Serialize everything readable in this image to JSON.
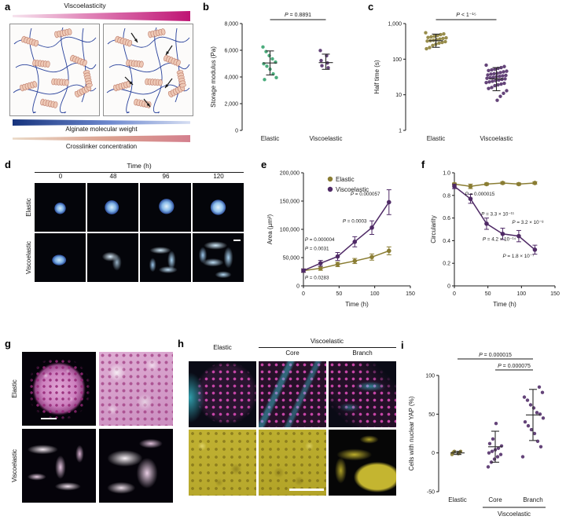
{
  "panels": {
    "a": {
      "label": "a",
      "viscoelasticity": "Viscoelasticity",
      "alginate": "Alginate molecular weight",
      "crosslinker": "Crosslinker concentration"
    },
    "b": {
      "label": "b"
    },
    "c": {
      "label": "c"
    },
    "d": {
      "label": "d",
      "time_header": "Time (h)",
      "timepoints": [
        "0",
        "48",
        "96",
        "120"
      ],
      "rows": [
        "Elastic",
        "Viscoelastic"
      ]
    },
    "e": {
      "label": "e"
    },
    "f": {
      "label": "f"
    },
    "g": {
      "label": "g",
      "rows": [
        "Elastic",
        "Viscoelastic"
      ]
    },
    "h": {
      "label": "h",
      "col1": "Elastic",
      "group": "Viscoelastic",
      "subcols": [
        "Core",
        "Branch"
      ]
    },
    "i": {
      "label": "i"
    }
  },
  "colors": {
    "elastic_olive": "#8a7d33",
    "elastic_green": "#33a06b",
    "viscoelastic_purple": "#4f2a66",
    "magenta_wedge": "#bf1474",
    "blue_wedge": "#16337d"
  },
  "chart_data": [
    {
      "id": "b",
      "type": "scatter_groups",
      "ylabel": "Storage modulus (Pa)",
      "ylim": [
        0,
        8000
      ],
      "yticks": [
        0,
        2000,
        4000,
        6000,
        8000
      ],
      "ytick_labels": [
        "0",
        "2,000",
        "4,000",
        "6,000",
        "8,000"
      ],
      "p_annotation": "P = 0.8891",
      "bracket": true,
      "groups": [
        {
          "label": "Elastic",
          "color": "#33a06b",
          "values": [
            6246,
            5899,
            5601,
            5356,
            5114,
            4989,
            4805,
            4582,
            4230,
            3952,
            3804
          ],
          "mean": 5050,
          "err_lo": 4150,
          "err_hi": 5950
        },
        {
          "label": "Viscoelastic",
          "color": "#4f2a66",
          "values": [
            5980,
            5590,
            5230,
            5050,
            4840,
            4690
          ],
          "mean": 5080,
          "err_lo": 4570,
          "err_hi": 5710
        }
      ]
    },
    {
      "id": "c",
      "type": "scatter_groups",
      "log": true,
      "ylabel": "Half time (s)",
      "ylim": [
        1,
        1000
      ],
      "yticks": [
        1,
        10,
        100,
        1000
      ],
      "ytick_labels": [
        "1",
        "10",
        "100",
        "1,000"
      ],
      "p_annotation": "P < 1⁻¹⁵",
      "bracket": true,
      "groups": [
        {
          "label": "Elastic",
          "color": "#8a7d33",
          "values": [
            551,
            512,
            489,
            462,
            441,
            423,
            408,
            396,
            381,
            368,
            352,
            340,
            331,
            322,
            310,
            295,
            282,
            265,
            243,
            212,
            196
          ],
          "mean": 330,
          "err_lo": 215,
          "err_hi": 505
        },
        {
          "label": "Viscoelastic",
          "color": "#4f2a66",
          "values": [
            68,
            62,
            58,
            55,
            52,
            50,
            48,
            46,
            44,
            42,
            40,
            39,
            38,
            36,
            35,
            34,
            33,
            32,
            31,
            30,
            29,
            28,
            27,
            26,
            25,
            24,
            23,
            22,
            21,
            20,
            19,
            18,
            16,
            15,
            13,
            11,
            9,
            7
          ],
          "mean": 28,
          "err_lo": 13,
          "err_hi": 58
        }
      ]
    },
    {
      "id": "e",
      "type": "line",
      "xlabel": "Time (h)",
      "ylabel": "Area (µm²)",
      "xlim": [
        0,
        150
      ],
      "xticks": [
        0,
        50,
        100,
        150
      ],
      "ylim": [
        0,
        200000
      ],
      "yticks": [
        0,
        50000,
        100000,
        150000,
        200000
      ],
      "ytick_labels": [
        "0",
        "50,000",
        "100,000",
        "150,000",
        "200,000"
      ],
      "legend": true,
      "series": [
        {
          "name": "Elastic",
          "color": "#8a7d33",
          "x": [
            0,
            24,
            48,
            72,
            96,
            120
          ],
          "y": [
            27000,
            31000,
            38000,
            44000,
            51000,
            62000
          ],
          "err": [
            3000,
            3500,
            4000,
            4500,
            5500,
            7000
          ]
        },
        {
          "name": "Viscoelastic",
          "color": "#4f2a66",
          "x": [
            0,
            24,
            48,
            72,
            96,
            120
          ],
          "y": [
            27000,
            40000,
            52000,
            78000,
            103000,
            148000
          ],
          "err": [
            3000,
            5000,
            7000,
            9000,
            12000,
            22000
          ]
        }
      ],
      "annotations": [
        {
          "text": "P = 0.0283",
          "x": 2,
          "y": 12000
        },
        {
          "text": "P = 0.0031",
          "x": 2,
          "y": 63000
        },
        {
          "text": "P = 0.000004",
          "x": 2,
          "y": 79000
        },
        {
          "text": "P = 0.0003",
          "x": 55,
          "y": 112000
        },
        {
          "text": "P = 0.000057",
          "x": 66,
          "y": 160000
        }
      ]
    },
    {
      "id": "f",
      "type": "line",
      "xlabel": "Time (h)",
      "ylabel": "Circularity",
      "xlim": [
        0,
        150
      ],
      "xticks": [
        0,
        50,
        100,
        150
      ],
      "ylim": [
        0,
        1.0
      ],
      "yticks": [
        0,
        0.2,
        0.4,
        0.6,
        0.8,
        1.0
      ],
      "ytick_labels": [
        "0",
        "0.2",
        "0.4",
        "0.6",
        "0.8",
        "1.0"
      ],
      "legend": false,
      "series": [
        {
          "name": "Elastic",
          "color": "#8a7d33",
          "x": [
            0,
            24,
            48,
            72,
            96,
            120
          ],
          "y": [
            0.9,
            0.88,
            0.9,
            0.91,
            0.9,
            0.91
          ],
          "err": [
            0.01,
            0.02,
            0.01,
            0.01,
            0.01,
            0.01
          ]
        },
        {
          "name": "Viscoelastic",
          "color": "#4f2a66",
          "x": [
            0,
            24,
            48,
            72,
            96,
            120
          ],
          "y": [
            0.88,
            0.77,
            0.55,
            0.46,
            0.44,
            0.32
          ],
          "err": [
            0.02,
            0.04,
            0.05,
            0.05,
            0.05,
            0.04
          ]
        }
      ],
      "annotations": [
        {
          "text": "P = 0.000015",
          "x": 16,
          "y": 0.8
        },
        {
          "text": "P = 3.3 × 10⁻¹¹",
          "x": 40,
          "y": 0.62
        },
        {
          "text": "P = 3.2 × 10⁻⁸",
          "x": 86,
          "y": 0.55
        },
        {
          "text": "P = 4.2 × 10⁻¹⁴",
          "x": 42,
          "y": 0.4
        },
        {
          "text": "P = 1.8 × 10⁻⁷",
          "x": 72,
          "y": 0.25
        }
      ]
    },
    {
      "id": "i",
      "type": "scatter_groups",
      "ylabel": "Cells with nuclear YAP (%)",
      "ylim": [
        -50,
        100
      ],
      "yticks": [
        -50,
        0,
        50,
        100
      ],
      "ytick_labels": [
        "-50",
        "0",
        "50",
        "100"
      ],
      "groups": [
        {
          "label": "Elastic",
          "color": "#8a7d33",
          "values": [
            -2,
            -1,
            0,
            0,
            1,
            1,
            2,
            2
          ],
          "mean": 0,
          "err_lo": -2,
          "err_hi": 2
        },
        {
          "label": "Core",
          "color": "#4f2a66",
          "values": [
            -18,
            -12,
            -8,
            -5,
            -2,
            0,
            2,
            4,
            6,
            9,
            12,
            18,
            38
          ],
          "mean": 8,
          "err_lo": -12,
          "err_hi": 28
        },
        {
          "label": "Branch",
          "color": "#4f2a66",
          "values": [
            -5,
            8,
            15,
            25,
            30,
            35,
            40,
            45,
            50,
            52,
            58,
            62,
            68,
            72,
            78,
            85
          ],
          "mean": 49,
          "err_lo": 16,
          "err_hi": 82
        }
      ],
      "brackets": [
        {
          "from": 0,
          "to": 2,
          "text": "P = 0.000015"
        },
        {
          "from": 1,
          "to": 2,
          "text": "P = 0.000075"
        }
      ],
      "group_label": {
        "text": "Viscoelastic",
        "from": 1,
        "to": 2
      }
    }
  ]
}
